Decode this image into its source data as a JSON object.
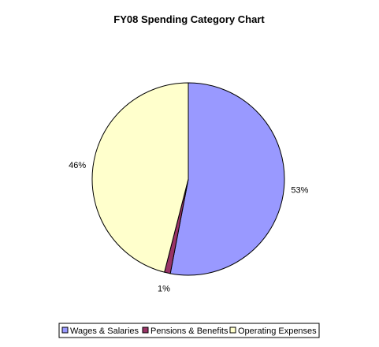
{
  "chart_data": {
    "type": "pie",
    "title": "FY08 Spending Category Chart",
    "slices": [
      {
        "name": "Wages & Salaries",
        "value": 53,
        "label": "53%",
        "color": "#9999ff"
      },
      {
        "name": "Pensions & Benefits",
        "value": 1,
        "label": "1%",
        "color": "#993366"
      },
      {
        "name": "Operating Expenses",
        "value": 46,
        "label": "46%",
        "color": "#ffffcc"
      }
    ],
    "legend_position": "bottom"
  }
}
